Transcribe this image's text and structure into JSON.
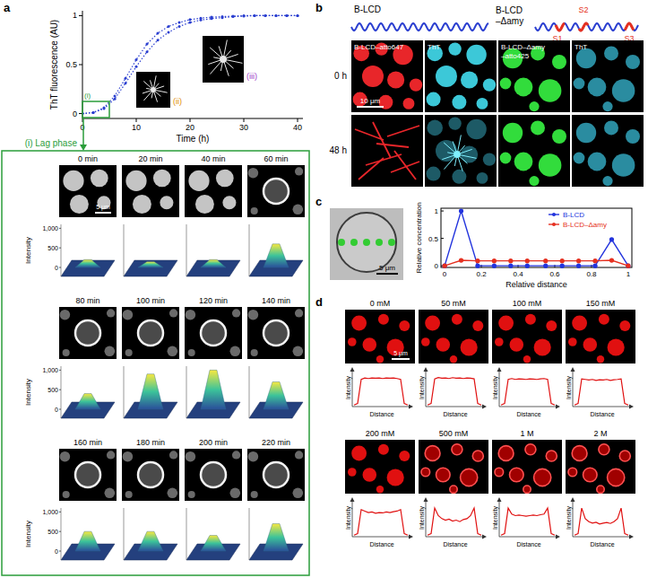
{
  "panel_labels": [
    "a",
    "b",
    "c",
    "d"
  ],
  "chart_data": [
    {
      "type": "line",
      "xlabel": "Time (h)",
      "ylabel": "ThT fluorescence (AU)",
      "x": [
        0,
        2,
        4,
        6,
        8,
        10,
        12,
        14,
        16,
        18,
        20,
        22,
        24,
        26,
        28,
        30,
        32,
        34,
        36,
        38,
        40
      ],
      "series": [
        {
          "color": "#2b3fd0",
          "marker": "dot",
          "line_style": "dotted",
          "values": [
            0,
            0.01,
            0.06,
            0.18,
            0.36,
            0.55,
            0.71,
            0.82,
            0.89,
            0.93,
            0.96,
            0.975,
            0.985,
            0.99,
            0.995,
            1,
            1,
            1,
            1,
            1,
            1
          ]
        },
        {
          "color": "#2b3fd0",
          "marker": "dot",
          "line_style": "dotted",
          "values": [
            0,
            0.01,
            0.05,
            0.15,
            0.31,
            0.48,
            0.63,
            0.75,
            0.83,
            0.89,
            0.93,
            0.955,
            0.97,
            0.98,
            0.99,
            0.995,
            1,
            1,
            1,
            1,
            1
          ]
        }
      ],
      "xlim": [
        0,
        41
      ],
      "ylim": [
        -0.05,
        1.05
      ],
      "xticks": [
        0,
        10,
        20,
        30,
        40
      ],
      "yticks": [
        0,
        0.5,
        1
      ],
      "annotations": [
        "(i)",
        "(ii)",
        "(iii)",
        "(i) Lag phase"
      ]
    },
    {
      "type": "line",
      "xlabel": "Relative distance",
      "ylabel": "Relative concentration",
      "x": [
        0,
        0.09,
        0.18,
        0.27,
        0.36,
        0.45,
        0.55,
        0.64,
        0.73,
        0.82,
        0.91,
        1
      ],
      "series": [
        {
          "name": "B-LCD",
          "color": "#2233dd",
          "marker": "circle",
          "values": [
            0,
            1,
            0,
            0,
            0,
            0,
            0,
            0,
            0,
            0,
            0.48,
            0
          ]
        },
        {
          "name": "B-LCD–Δamy",
          "color": "#e53020",
          "marker": "circle",
          "values": [
            0,
            0.1,
            0.09,
            0.09,
            0.09,
            0.09,
            0.09,
            0.09,
            0.09,
            0.09,
            0.1,
            0
          ]
        }
      ],
      "xlim": [
        -0.02,
        1.02
      ],
      "ylim": [
        -0.03,
        1.05
      ],
      "xticks": [
        0,
        0.2,
        0.4,
        0.6,
        0.8,
        1
      ],
      "yticks": [
        0,
        0.5,
        1
      ],
      "legend": "upper-right"
    },
    {
      "type": "line",
      "title": "0 mM",
      "xlabel": "Distance",
      "ylabel": "Intensity",
      "x": [
        0,
        1,
        2,
        3,
        4,
        5,
        6,
        7,
        8,
        9,
        10,
        11,
        12,
        13,
        14,
        15
      ],
      "values": [
        0.05,
        0.1,
        0.9,
        0.95,
        0.93,
        0.95,
        0.94,
        0.95,
        0.93,
        0.95,
        0.94,
        0.95,
        0.93,
        0.9,
        0.1,
        0.05
      ],
      "color": "#e01010",
      "xlim": [
        0,
        15
      ],
      "ylim": [
        0,
        1.25
      ],
      "tick_labels": false
    },
    {
      "type": "line",
      "title": "50 mM",
      "xlabel": "Distance",
      "ylabel": "Intensity",
      "x": [
        0,
        1,
        2,
        3,
        4,
        5,
        6,
        7,
        8,
        9,
        10,
        11,
        12,
        13,
        14,
        15
      ],
      "values": [
        0.05,
        0.1,
        0.92,
        0.96,
        0.94,
        0.95,
        0.93,
        0.96,
        0.94,
        0.95,
        0.93,
        0.95,
        0.94,
        0.92,
        0.1,
        0.05
      ],
      "color": "#e01010",
      "xlim": [
        0,
        15
      ],
      "ylim": [
        0,
        1.25
      ],
      "tick_labels": false
    },
    {
      "type": "line",
      "title": "100 mM",
      "xlabel": "Distance",
      "ylabel": "Intensity",
      "x": [
        0,
        1,
        2,
        3,
        4,
        5,
        6,
        7,
        8,
        9,
        10,
        11,
        12,
        13,
        14,
        15
      ],
      "values": [
        0.05,
        0.1,
        0.9,
        0.93,
        0.9,
        0.92,
        0.91,
        0.9,
        0.92,
        0.91,
        0.9,
        0.92,
        0.93,
        0.9,
        0.1,
        0.05
      ],
      "color": "#e01010",
      "xlim": [
        0,
        15
      ],
      "ylim": [
        0,
        1.25
      ],
      "tick_labels": false
    },
    {
      "type": "line",
      "title": "150 mM",
      "xlabel": "Distance",
      "ylabel": "Intensity",
      "x": [
        0,
        1,
        2,
        3,
        4,
        5,
        6,
        7,
        8,
        9,
        10,
        11,
        12,
        13,
        14,
        15
      ],
      "values": [
        0.05,
        0.1,
        0.92,
        0.9,
        0.88,
        0.9,
        0.87,
        0.89,
        0.88,
        0.9,
        0.87,
        0.89,
        0.9,
        0.92,
        0.1,
        0.05
      ],
      "color": "#e01010",
      "xlim": [
        0,
        15
      ],
      "ylim": [
        0,
        1.25
      ],
      "tick_labels": false
    },
    {
      "type": "line",
      "title": "200 mM",
      "xlabel": "Distance",
      "ylabel": "Intensity",
      "x": [
        0,
        1,
        2,
        3,
        4,
        5,
        6,
        7,
        8,
        9,
        10,
        11,
        12,
        13,
        14,
        15
      ],
      "values": [
        0.05,
        0.1,
        0.9,
        0.85,
        0.8,
        0.82,
        0.78,
        0.8,
        0.79,
        0.82,
        0.8,
        0.83,
        0.85,
        0.9,
        0.1,
        0.05
      ],
      "color": "#e01010",
      "xlim": [
        0,
        15
      ],
      "ylim": [
        0,
        1.25
      ],
      "tick_labels": false
    },
    {
      "type": "line",
      "title": "500 mM",
      "xlabel": "Distance",
      "ylabel": "Intensity",
      "x": [
        0,
        1,
        2,
        3,
        4,
        5,
        6,
        7,
        8,
        9,
        10,
        11,
        12,
        13,
        14,
        15
      ],
      "values": [
        0.05,
        0.1,
        0.95,
        0.7,
        0.6,
        0.55,
        0.58,
        0.52,
        0.55,
        0.5,
        0.57,
        0.6,
        0.7,
        0.95,
        0.1,
        0.05
      ],
      "color": "#e01010",
      "xlim": [
        0,
        15
      ],
      "ylim": [
        0,
        1.25
      ],
      "tick_labels": false
    },
    {
      "type": "line",
      "title": "1 M",
      "xlabel": "Distance",
      "ylabel": "Intensity",
      "x": [
        0,
        1,
        2,
        3,
        4,
        5,
        6,
        7,
        8,
        9,
        10,
        11,
        12,
        13,
        14,
        15
      ],
      "values": [
        0.05,
        0.1,
        0.95,
        0.75,
        0.7,
        0.72,
        0.7,
        0.68,
        0.7,
        0.72,
        0.7,
        0.73,
        0.75,
        0.95,
        0.1,
        0.05
      ],
      "color": "#e01010",
      "xlim": [
        0,
        15
      ],
      "ylim": [
        0,
        1.25
      ],
      "tick_labels": false
    },
    {
      "type": "line",
      "title": "2 M",
      "xlabel": "Distance",
      "ylabel": "Intensity",
      "x": [
        0,
        1,
        2,
        3,
        4,
        5,
        6,
        7,
        8,
        9,
        10,
        11,
        12,
        13,
        14,
        15
      ],
      "values": [
        0.05,
        0.1,
        0.95,
        0.6,
        0.5,
        0.45,
        0.48,
        0.42,
        0.45,
        0.47,
        0.44,
        0.5,
        0.6,
        0.95,
        0.1,
        0.05
      ],
      "color": "#e01010",
      "xlim": [
        0,
        15
      ],
      "ylim": [
        0,
        1.25
      ],
      "tick_labels": false
    }
  ],
  "lag_phase": {
    "frames": [
      {
        "label": "0 min",
        "peak": 200
      },
      {
        "label": "20 min",
        "peak": 150
      },
      {
        "label": "40 min",
        "peak": 200
      },
      {
        "label": "60 min",
        "peak": 600
      },
      {
        "label": "80 min",
        "peak": 400
      },
      {
        "label": "100 min",
        "peak": 900
      },
      {
        "label": "120 min",
        "peak": 1000
      },
      {
        "label": "140 min",
        "peak": 700
      },
      {
        "label": "160 min",
        "peak": 500
      },
      {
        "label": "180 min",
        "peak": 500
      },
      {
        "label": "200 min",
        "peak": 400
      },
      {
        "label": "220 min",
        "peak": 700
      }
    ],
    "z_label": "Intensity",
    "zlim": [
      0,
      1100
    ],
    "z_ticks": [
      0,
      500,
      {
        "value": 1000,
        "label": "1,000"
      }
    ],
    "scale_bar": "5 μm"
  },
  "panel_b": {
    "constructs": [
      {
        "name": "B-LCD"
      },
      {
        "name": "B-LCD–Δamy",
        "sites": [
          "S1",
          "S2",
          "S3"
        ]
      }
    ],
    "columns": [
      "B-LCD–atto647",
      "ThT",
      "B-LCD–Δamy –atto425",
      "ThT"
    ],
    "rows": [
      "0 h",
      "48 h"
    ],
    "scale_bar": "10 μm"
  },
  "panel_c": {
    "scale_bar": "5 μm"
  },
  "panel_d": {
    "scale_bar": "5 μm"
  }
}
